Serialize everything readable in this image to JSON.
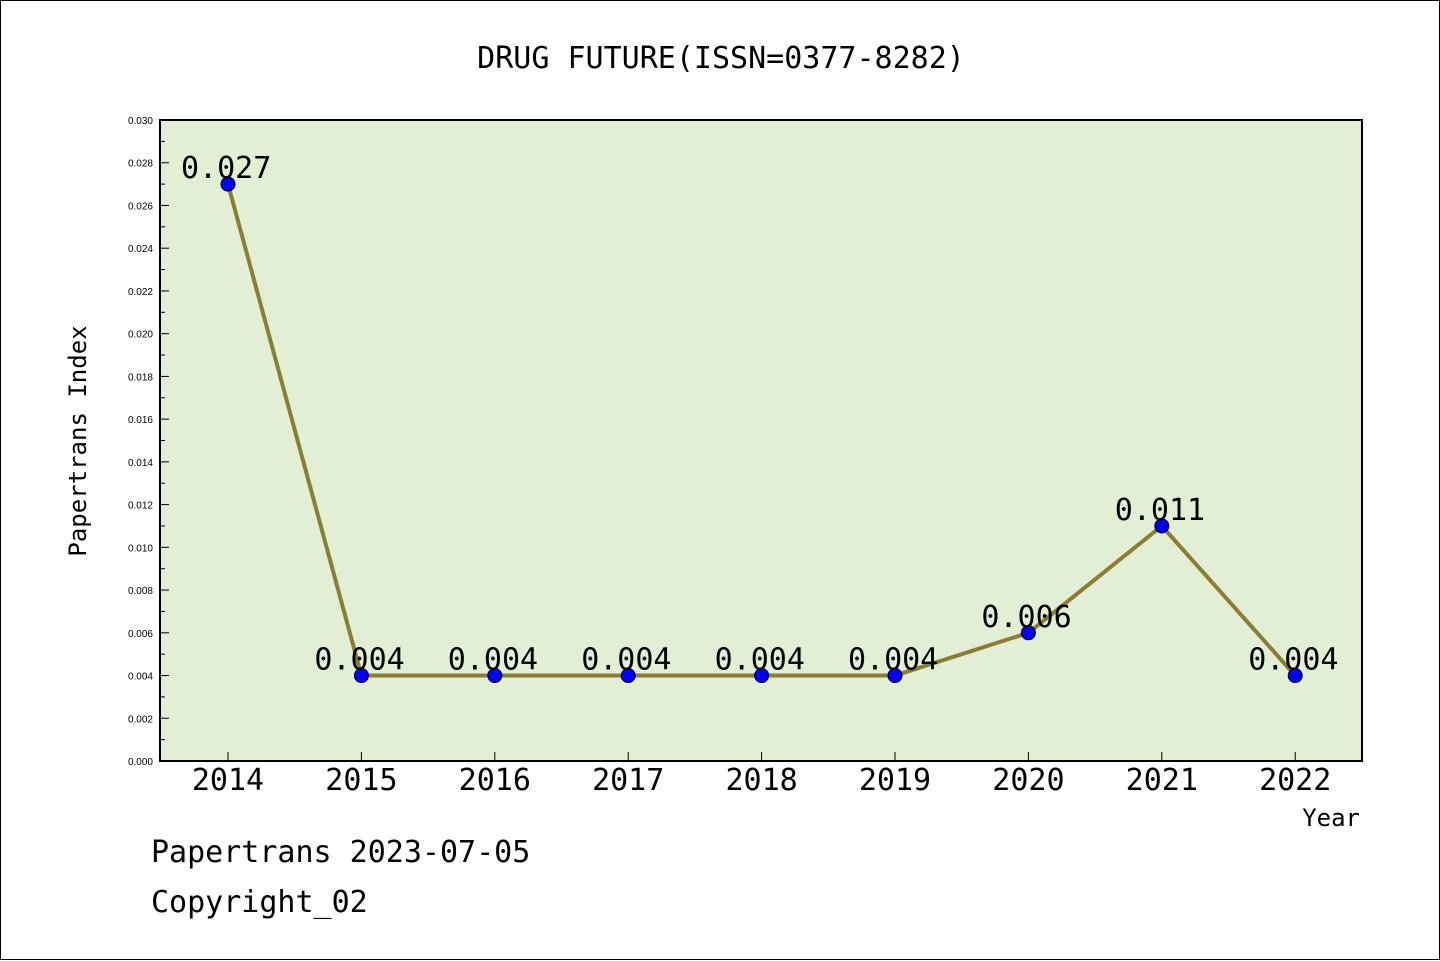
{
  "chart_data": {
    "type": "line",
    "title": "DRUG FUTURE(ISSN=0377-8282)",
    "xlabel": "Year",
    "ylabel": "Papertrans Index",
    "categories": [
      "2014",
      "2015",
      "2016",
      "2017",
      "2018",
      "2019",
      "2020",
      "2021",
      "2022"
    ],
    "values": [
      0.027,
      0.004,
      0.004,
      0.004,
      0.004,
      0.004,
      0.006,
      0.011,
      0.004
    ],
    "data_labels": [
      "0.027",
      "0.004",
      "0.004",
      "0.004",
      "0.004",
      "0.004",
      "0.006",
      "0.011",
      "0.004"
    ],
    "ylim": [
      0,
      0.03
    ],
    "yticks": [
      "0.000",
      "0.002",
      "0.004",
      "0.006",
      "0.008",
      "0.010",
      "0.012",
      "0.014",
      "0.016",
      "0.018",
      "0.020",
      "0.022",
      "0.024",
      "0.026",
      "0.028",
      "0.030"
    ],
    "grid": false,
    "legend": "none",
    "colors": {
      "plot_background": "#e2efd5",
      "line": "#8b7d33",
      "marker": "#0000ff",
      "axis": "#000000"
    }
  },
  "footer": {
    "line1": "Papertrans 2023-07-05",
    "line2": "Copyright_02"
  }
}
